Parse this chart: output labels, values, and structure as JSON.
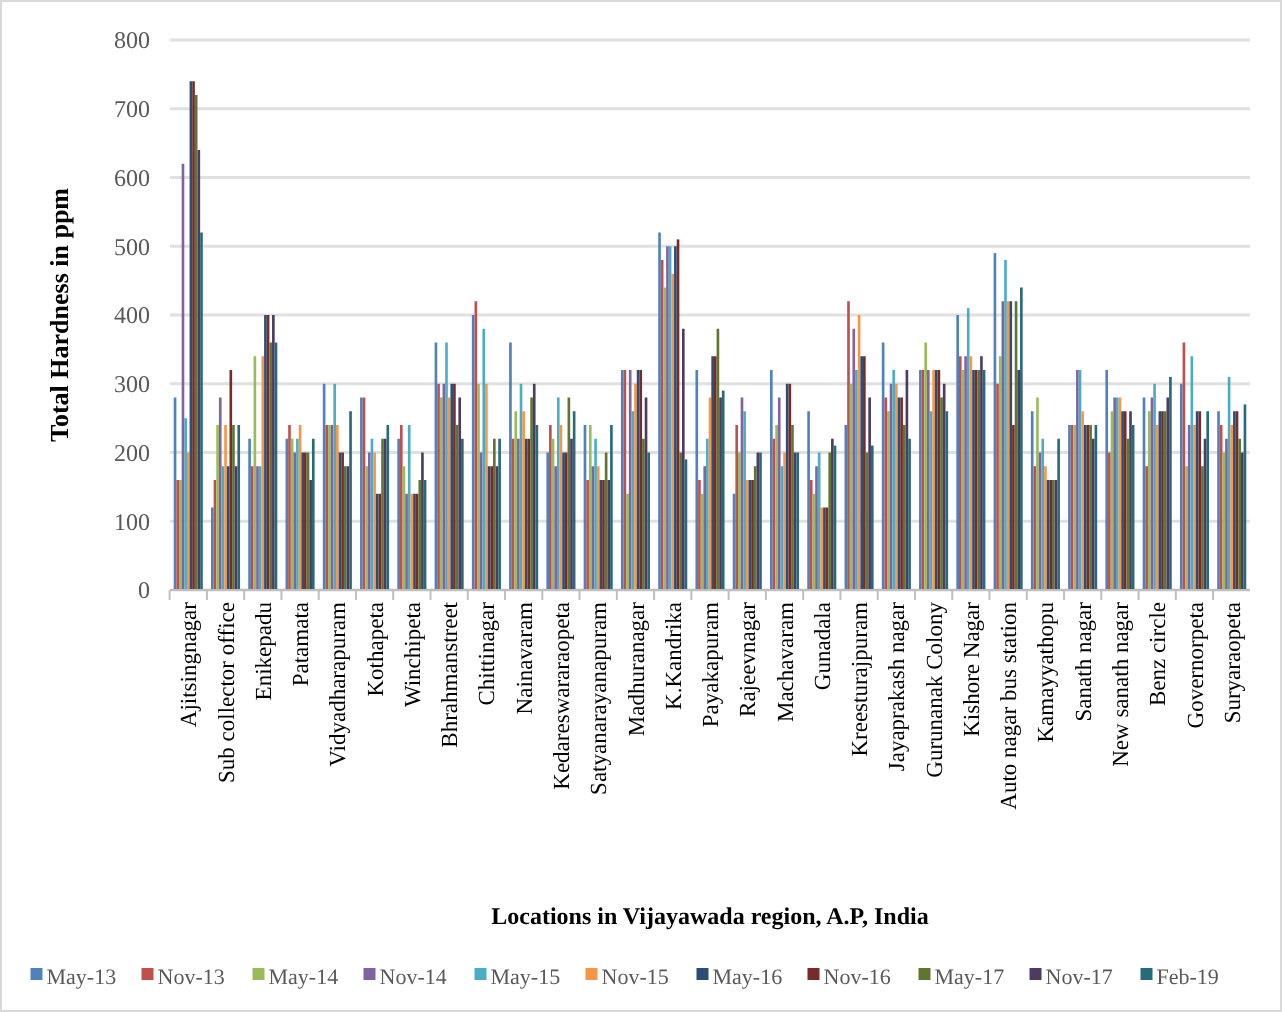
{
  "chart_data": {
    "type": "bar",
    "xlabel": "Locations in Vijayawada region, A.P, India",
    "ylabel": "Total Hardness in ppm",
    "categories": [
      "Ajitsingnagar",
      "Sub collector office",
      "Enikepadu",
      "Patamata",
      "Vidyadharapuram",
      "Kothapeta",
      "Winchipeta",
      "Bhrahmanstreet",
      "Chittinagar",
      "Nainavaram",
      "Kedareswararaopeta",
      "Satyanarayanapuram",
      "Madhuranagar",
      "K.Kandrika",
      "Payakapuram",
      "Rajeevnagar",
      "Machavaram",
      "Gunadala",
      "Kreesturajpuram",
      "Jayaprakash nagar",
      "Gurunanak Colony",
      "Kishore Nagar",
      "Auto nagar bus station",
      "Kamayyathopu",
      "Sanath nagar",
      "New sanath nagar",
      "Benz circle",
      "Governorpeta",
      "Suryaraopeta"
    ],
    "series": [
      {
        "name": "May-13",
        "color": "#4f81bd",
        "values": [
          280,
          120,
          220,
          220,
          300,
          280,
          220,
          360,
          400,
          360,
          200,
          240,
          320,
          520,
          320,
          140,
          320,
          260,
          240,
          360,
          320,
          400,
          490,
          260,
          240,
          320,
          280,
          300,
          260
        ]
      },
      {
        "name": "Nov-13",
        "color": "#c0504d",
        "values": [
          160,
          160,
          180,
          240,
          240,
          280,
          240,
          300,
          420,
          220,
          240,
          160,
          320,
          480,
          160,
          240,
          220,
          160,
          420,
          280,
          320,
          340,
          300,
          180,
          240,
          200,
          180,
          360,
          240
        ]
      },
      {
        "name": "May-14",
        "color": "#9bbb59",
        "values": [
          160,
          240,
          340,
          220,
          240,
          180,
          180,
          280,
          300,
          260,
          220,
          240,
          140,
          440,
          140,
          200,
          240,
          140,
          300,
          260,
          360,
          320,
          340,
          280,
          240,
          260,
          260,
          180,
          200
        ]
      },
      {
        "name": "Nov-14",
        "color": "#8064a2",
        "values": [
          620,
          280,
          180,
          200,
          240,
          200,
          140,
          300,
          200,
          220,
          180,
          180,
          320,
          500,
          180,
          280,
          280,
          180,
          380,
          300,
          320,
          340,
          420,
          200,
          320,
          280,
          280,
          240,
          220
        ]
      },
      {
        "name": "May-15",
        "color": "#4bacc6",
        "values": [
          250,
          180,
          180,
          220,
          300,
          220,
          240,
          360,
          380,
          300,
          280,
          220,
          260,
          500,
          220,
          260,
          180,
          200,
          320,
          320,
          260,
          410,
          480,
          220,
          320,
          280,
          300,
          340,
          310
        ]
      },
      {
        "name": "Nov-15",
        "color": "#f79646",
        "values": [
          200,
          240,
          340,
          240,
          240,
          200,
          140,
          280,
          300,
          260,
          240,
          180,
          300,
          460,
          280,
          160,
          200,
          120,
          400,
          300,
          320,
          340,
          420,
          180,
          260,
          280,
          240,
          240,
          240
        ]
      },
      {
        "name": "May-16",
        "color": "#2c4d75",
        "values": [
          740,
          180,
          400,
          200,
          200,
          140,
          140,
          300,
          180,
          220,
          200,
          160,
          320,
          500,
          340,
          160,
          300,
          120,
          340,
          280,
          320,
          320,
          420,
          160,
          240,
          260,
          260,
          260,
          260
        ]
      },
      {
        "name": "Nov-16",
        "color": "#772c2a",
        "values": [
          740,
          320,
          400,
          200,
          200,
          140,
          140,
          300,
          180,
          220,
          200,
          160,
          320,
          510,
          340,
          160,
          300,
          120,
          340,
          280,
          320,
          320,
          240,
          160,
          240,
          260,
          260,
          260,
          260
        ]
      },
      {
        "name": "May-17",
        "color": "#5f7530",
        "values": [
          720,
          240,
          360,
          200,
          180,
          220,
          160,
          240,
          220,
          280,
          280,
          200,
          220,
          200,
          380,
          180,
          240,
          200,
          200,
          240,
          280,
          320,
          420,
          160,
          240,
          220,
          260,
          180,
          220
        ]
      },
      {
        "name": "Nov-17",
        "color": "#4d3b62",
        "values": [
          640,
          180,
          400,
          160,
          180,
          220,
          200,
          280,
          180,
          300,
          220,
          160,
          280,
          380,
          280,
          200,
          200,
          220,
          280,
          320,
          300,
          340,
          320,
          160,
          220,
          260,
          280,
          220,
          200
        ]
      },
      {
        "name": "Feb-19",
        "color": "#276a7c",
        "values": [
          520,
          240,
          360,
          220,
          260,
          240,
          160,
          220,
          220,
          240,
          260,
          240,
          200,
          190,
          290,
          200,
          200,
          210,
          210,
          220,
          260,
          320,
          440,
          220,
          240,
          240,
          310,
          260,
          270
        ]
      }
    ],
    "ylim": [
      0,
      800
    ],
    "yticks": [
      0,
      100,
      200,
      300,
      400,
      500,
      600,
      700,
      800
    ],
    "grid": "y",
    "legend": "bottom"
  }
}
